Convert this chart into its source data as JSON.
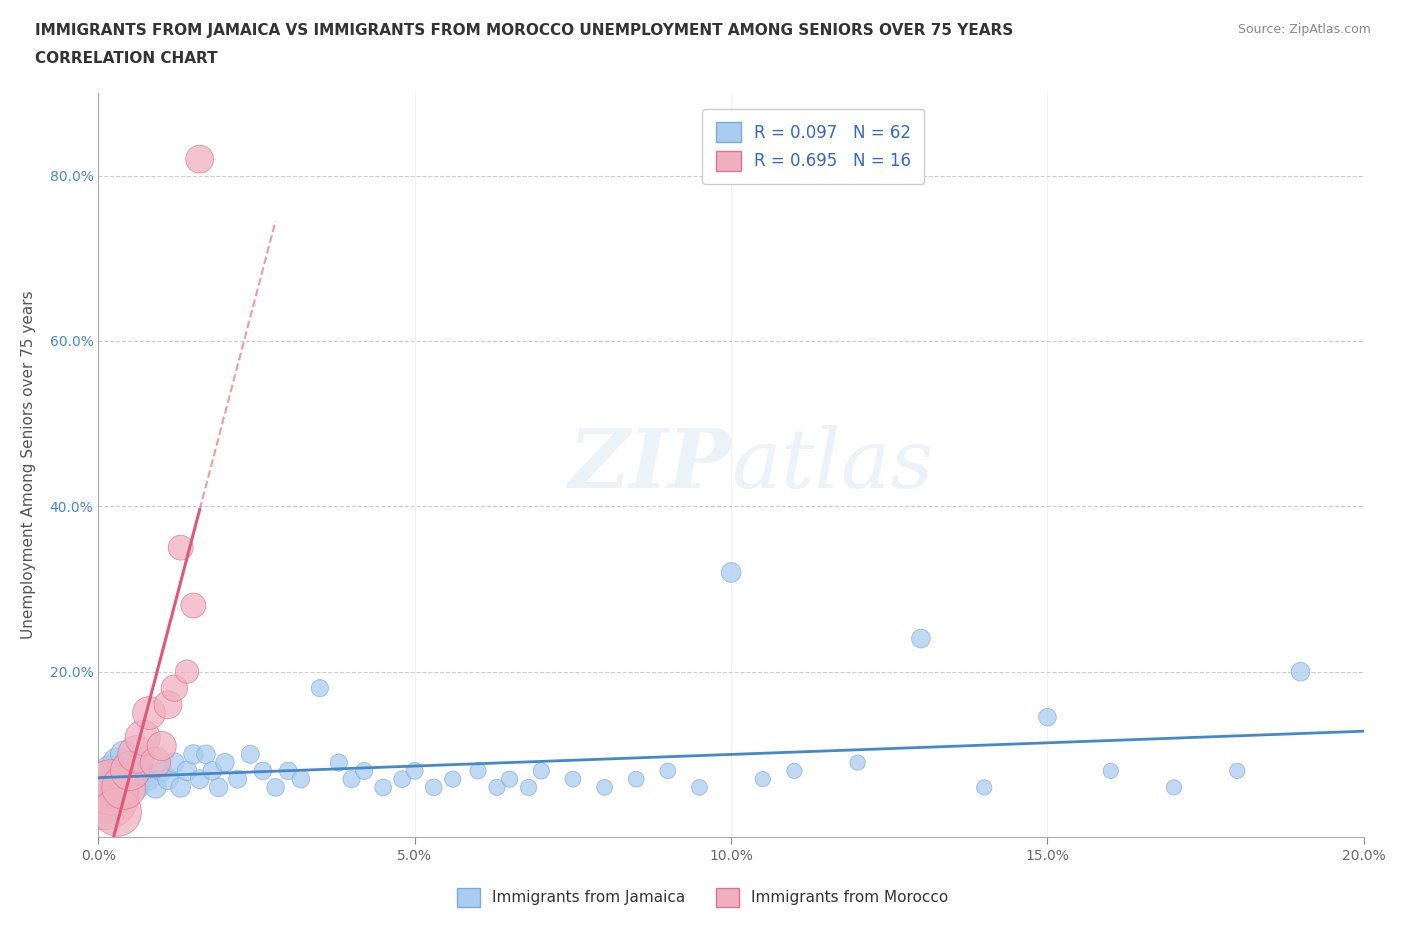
{
  "title_line1": "IMMIGRANTS FROM JAMAICA VS IMMIGRANTS FROM MOROCCO UNEMPLOYMENT AMONG SENIORS OVER 75 YEARS",
  "title_line2": "CORRELATION CHART",
  "source_text": "Source: ZipAtlas.com",
  "ylabel": "Unemployment Among Seniors over 75 years",
  "xlim": [
    0.0,
    0.2
  ],
  "ylim": [
    0.0,
    0.9
  ],
  "xticks": [
    0.0,
    0.05,
    0.1,
    0.15,
    0.2
  ],
  "xtick_labels": [
    "0.0%",
    "5.0%",
    "10.0%",
    "15.0%",
    "20.0%"
  ],
  "yticks": [
    0.0,
    0.2,
    0.4,
    0.6,
    0.8
  ],
  "ytick_labels": [
    "",
    "20.0%",
    "40.0%",
    "60.0%",
    "80.0%"
  ],
  "watermark_zip": "ZIP",
  "watermark_atlas": "atlas",
  "jamaica_color": "#aaccf0",
  "jamaica_edge": "#7aaad8",
  "morocco_color": "#f0b0c0",
  "morocco_edge": "#e07090",
  "trendline_jamaica_color": "#4488cc",
  "trendline_morocco_color": "#e05878",
  "R_jamaica": 0.097,
  "N_jamaica": 62,
  "R_morocco": 0.695,
  "N_morocco": 16,
  "legend_label_jamaica": "Immigrants from Jamaica",
  "legend_label_morocco": "Immigrants from Morocco",
  "jamaica_x": [
    0.001,
    0.002,
    0.002,
    0.003,
    0.003,
    0.004,
    0.004,
    0.005,
    0.005,
    0.006,
    0.006,
    0.007,
    0.007,
    0.008,
    0.009,
    0.01,
    0.011,
    0.012,
    0.013,
    0.014,
    0.015,
    0.016,
    0.017,
    0.018,
    0.019,
    0.02,
    0.022,
    0.024,
    0.026,
    0.028,
    0.03,
    0.032,
    0.035,
    0.038,
    0.04,
    0.042,
    0.045,
    0.048,
    0.05,
    0.053,
    0.056,
    0.06,
    0.063,
    0.065,
    0.068,
    0.07,
    0.075,
    0.08,
    0.085,
    0.09,
    0.095,
    0.1,
    0.105,
    0.11,
    0.12,
    0.13,
    0.14,
    0.15,
    0.16,
    0.17,
    0.18,
    0.19
  ],
  "jamaica_y": [
    0.04,
    0.06,
    0.08,
    0.07,
    0.09,
    0.06,
    0.1,
    0.08,
    0.07,
    0.09,
    0.06,
    0.08,
    0.1,
    0.07,
    0.06,
    0.08,
    0.07,
    0.09,
    0.06,
    0.08,
    0.1,
    0.07,
    0.1,
    0.08,
    0.06,
    0.09,
    0.07,
    0.1,
    0.08,
    0.06,
    0.08,
    0.07,
    0.18,
    0.09,
    0.07,
    0.08,
    0.06,
    0.07,
    0.08,
    0.06,
    0.07,
    0.08,
    0.06,
    0.07,
    0.06,
    0.08,
    0.07,
    0.06,
    0.07,
    0.08,
    0.06,
    0.32,
    0.07,
    0.08,
    0.09,
    0.24,
    0.06,
    0.145,
    0.08,
    0.06,
    0.08,
    0.2
  ],
  "jamaica_size": [
    200,
    160,
    130,
    120,
    110,
    100,
    90,
    95,
    85,
    80,
    75,
    70,
    65,
    60,
    60,
    55,
    55,
    50,
    50,
    50,
    48,
    46,
    45,
    45,
    44,
    44,
    42,
    42,
    40,
    40,
    40,
    40,
    38,
    38,
    38,
    38,
    36,
    36,
    36,
    36,
    34,
    34,
    34,
    34,
    34,
    34,
    32,
    32,
    32,
    32,
    32,
    50,
    30,
    30,
    30,
    45,
    30,
    40,
    30,
    30,
    30,
    45
  ],
  "morocco_x": [
    0.001,
    0.002,
    0.003,
    0.004,
    0.005,
    0.006,
    0.007,
    0.008,
    0.009,
    0.01,
    0.011,
    0.012,
    0.013,
    0.014,
    0.015,
    0.016
  ],
  "morocco_y": [
    0.05,
    0.06,
    0.03,
    0.06,
    0.08,
    0.1,
    0.12,
    0.15,
    0.09,
    0.11,
    0.16,
    0.18,
    0.35,
    0.2,
    0.28,
    0.82
  ],
  "morocco_size": [
    600,
    400,
    300,
    250,
    200,
    180,
    160,
    140,
    120,
    110,
    100,
    90,
    80,
    70,
    80,
    100
  ]
}
